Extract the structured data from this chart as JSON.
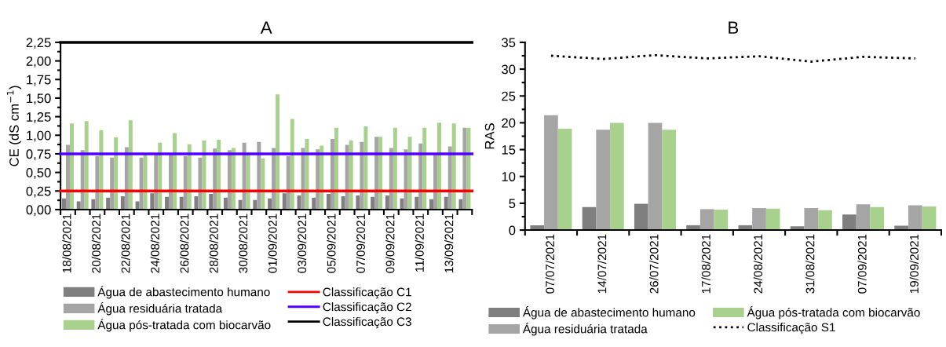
{
  "chart_data": [
    {
      "type": "bar",
      "title": "A",
      "ylabel": "CE (dS cm$^{−1}$)",
      "categories": [
        "18/08/2021",
        null,
        "20/08/2021",
        null,
        "22/08/2021",
        null,
        "24/08/2021",
        null,
        "26/08/2021",
        null,
        "28/08/2021",
        null,
        "30/08/2021",
        null,
        "01/09/2021",
        null,
        "03/09/2021",
        null,
        "05/09/2021",
        null,
        "07/09/2021",
        null,
        "09/09/2021",
        null,
        "11/09/2021",
        null,
        "13/09/2021",
        null
      ],
      "series": [
        {
          "name": "Água de abastecimento humano",
          "color": "#7f7f7f",
          "values": [
            0.15,
            0.11,
            0.14,
            0.16,
            0.18,
            0.11,
            0.22,
            0.17,
            0.17,
            0.18,
            0.21,
            0.16,
            0.13,
            0.13,
            0.15,
            0.22,
            0.19,
            0.16,
            0.21,
            0.18,
            0.19,
            0.17,
            0.19,
            0.15,
            0.17,
            0.14,
            0.17,
            0.14
          ]
        },
        {
          "name": "Água residuária tratada",
          "color": "#a5a5a5",
          "values": [
            0.87,
            0.8,
            0.72,
            0.7,
            0.84,
            0.7,
            0.75,
            0.75,
            0.72,
            0.7,
            0.82,
            0.8,
            0.9,
            0.91,
            0.83,
            0.72,
            0.83,
            0.81,
            0.95,
            0.87,
            0.91,
            0.98,
            0.83,
            0.81,
            0.89,
            0.75,
            0.85,
            1.1
          ]
        },
        {
          "name": "Água pós-tratada com biocarvão",
          "color": "#a9d18e",
          "values": [
            1.16,
            1.19,
            1.07,
            0.97,
            1.2,
            0.74,
            0.9,
            1.03,
            0.88,
            0.93,
            0.94,
            0.83,
            0.74,
            0.69,
            1.55,
            1.22,
            0.95,
            0.86,
            1.1,
            0.93,
            1.12,
            0.98,
            1.1,
            0.98,
            1.1,
            1.17,
            1.16,
            1.1
          ]
        }
      ],
      "ref_lines": [
        {
          "axis": "y",
          "value": 0.25,
          "label": "Classificação C1",
          "color": "#ff0000",
          "line_style": "solid"
        },
        {
          "axis": "y",
          "value": 0.75,
          "label": "Classificação C2",
          "color": "#5000ff",
          "line_style": "solid"
        },
        {
          "axis": "y",
          "value": 2.25,
          "label": "Classificação C3",
          "color": "#000000",
          "line_style": "solid"
        }
      ],
      "ylim": [
        0,
        2.25
      ],
      "yticks": [
        {
          "value": 0,
          "label": "0,00"
        },
        {
          "value": 0.25,
          "label": "0,25"
        },
        {
          "value": 0.5,
          "label": "0,50"
        },
        {
          "value": 0.75,
          "label": "0,75"
        },
        {
          "value": 1,
          "label": "1,00"
        },
        {
          "value": 1.25,
          "label": "1,25"
        },
        {
          "value": 1.5,
          "label": "1,50"
        },
        {
          "value": 1.75,
          "label": "1,75"
        },
        {
          "value": 2,
          "label": "2,00"
        },
        {
          "value": 2.25,
          "label": "2,25"
        }
      ],
      "grid": false,
      "legend": "bottom"
    },
    {
      "type": "bar",
      "title": "B",
      "ylabel": "RAS",
      "categories": [
        "07/07/2021",
        "14/07/2021",
        "26/07/2021",
        "17/08/2021",
        "24/08/2021",
        "31/08/2021",
        "07/09/2021",
        "19/09/2021"
      ],
      "series": [
        {
          "name": "Água de abastecimento humano",
          "color": "#7f7f7f",
          "values": [
            0.9,
            4.3,
            4.9,
            0.9,
            0.9,
            0.7,
            2.9,
            0.8
          ]
        },
        {
          "name": "Água residuária tratada",
          "color": "#a5a5a5",
          "values": [
            21.4,
            18.7,
            20.0,
            3.9,
            4.1,
            4.1,
            4.8,
            4.6
          ]
        },
        {
          "name": "Água pós-tratada com biocarvão",
          "color": "#a9d18e",
          "values": [
            18.9,
            20.0,
            18.7,
            3.8,
            4.0,
            3.7,
            4.3,
            4.4
          ]
        },
        {
          "name": "Classificação S1",
          "type": "line",
          "color": "#000000",
          "line_style": "dotted",
          "values": [
            32.5,
            31.9,
            32.6,
            32.0,
            32.4,
            31.4,
            32.3,
            32.0
          ]
        }
      ],
      "ylim": [
        0,
        35
      ],
      "yticks": [
        0,
        5,
        10,
        15,
        20,
        25,
        30,
        35
      ],
      "grid": false,
      "legend": "bottom"
    }
  ]
}
